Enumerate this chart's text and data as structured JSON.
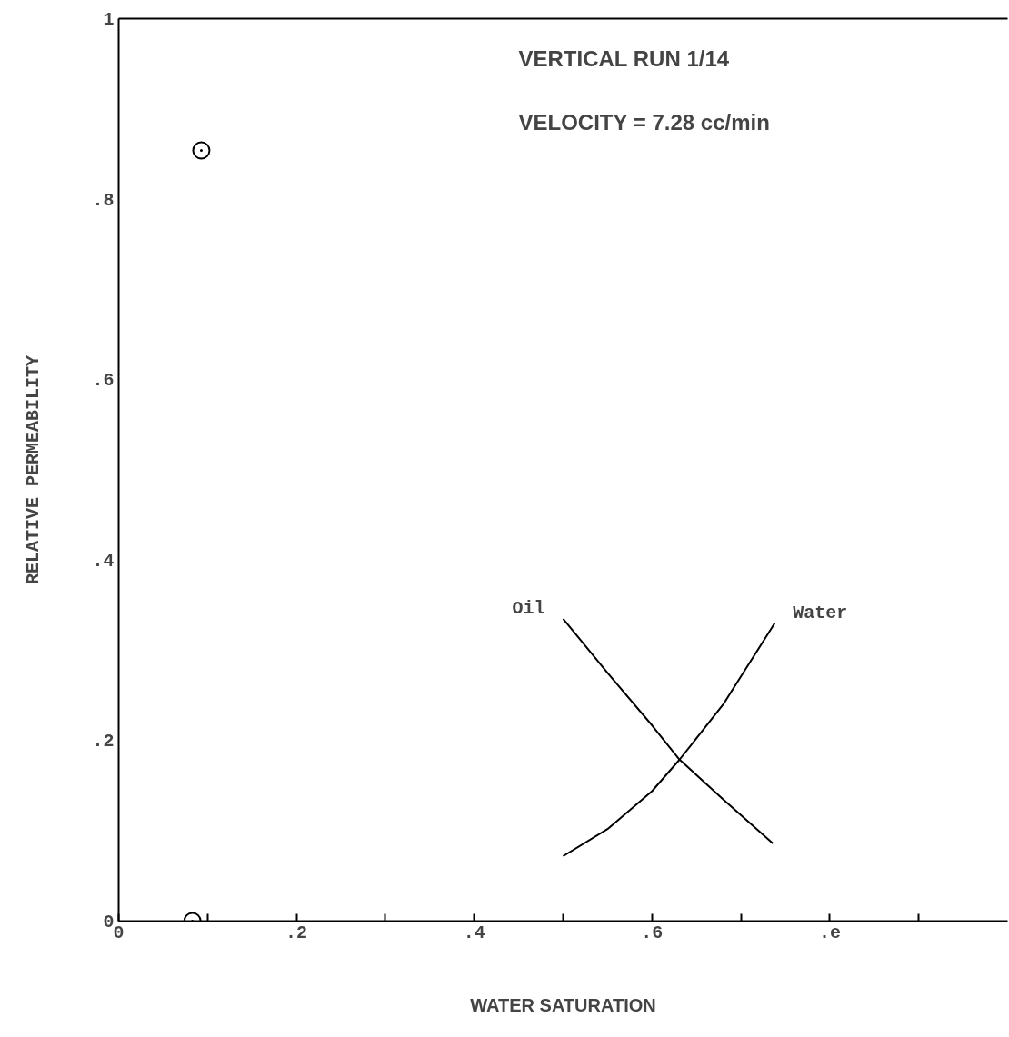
{
  "chart_data": {
    "type": "line",
    "xlabel": "WATER SATURATION",
    "ylabel": "RELATIVE PERMEABILITY",
    "annotations": [
      "VERTICAL RUN 1/14",
      "VELOCITY = 7.28 cc/min"
    ],
    "xlim": [
      0,
      1
    ],
    "ylim": [
      0,
      1
    ],
    "xticks": [
      {
        "value": 0,
        "label": "0"
      },
      {
        "value": 0.1,
        "label": null
      },
      {
        "value": 0.2,
        "label": ".2"
      },
      {
        "value": 0.3,
        "label": null
      },
      {
        "value": 0.4,
        "label": ".4"
      },
      {
        "value": 0.5,
        "label": null
      },
      {
        "value": 0.6,
        "label": ".6"
      },
      {
        "value": 0.7,
        "label": null
      },
      {
        "value": 0.8,
        "label": ".e"
      },
      {
        "value": 0.9,
        "label": null
      }
    ],
    "yticks": [
      {
        "value": 0,
        "label": "0"
      },
      {
        "value": 0.2,
        "label": ".2"
      },
      {
        "value": 0.4,
        "label": ".4"
      },
      {
        "value": 0.6,
        "label": ".6"
      },
      {
        "value": 0.8,
        "label": ".8"
      },
      1
    ],
    "grid": false,
    "series": [
      {
        "name": "Oil",
        "color": "#000000",
        "x": [
          0.5,
          0.55,
          0.6,
          0.631,
          0.68,
          0.736
        ],
        "values": [
          0.335,
          0.275,
          0.217,
          0.179,
          0.135,
          0.086
        ]
      },
      {
        "name": "Water",
        "color": "#000000",
        "x": [
          0.5,
          0.55,
          0.6,
          0.631,
          0.68,
          0.738
        ],
        "values": [
          0.072,
          0.102,
          0.144,
          0.179,
          0.24,
          0.33
        ]
      },
      {
        "type": "scatter",
        "color": "#000000",
        "marker": "circle",
        "x": [
          0.093,
          0.083
        ],
        "values": [
          0.854,
          0.0
        ]
      }
    ]
  }
}
